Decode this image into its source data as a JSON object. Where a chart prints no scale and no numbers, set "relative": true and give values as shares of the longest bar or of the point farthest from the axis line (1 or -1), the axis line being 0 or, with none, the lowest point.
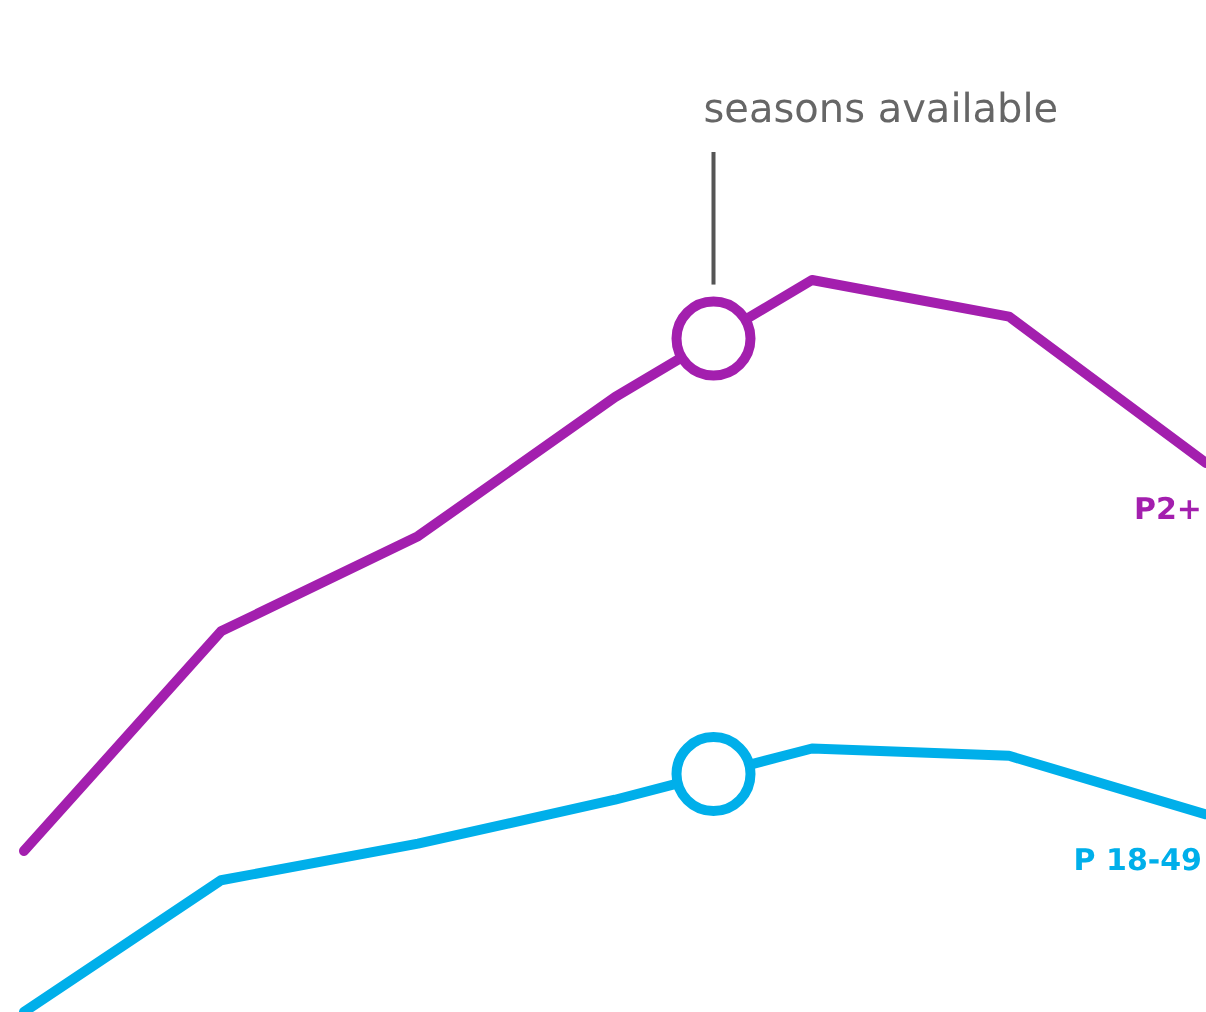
{
  "chart_data": {
    "type": "line",
    "relative": true,
    "marker": "none",
    "categories": [
      null,
      null,
      null,
      null,
      null,
      null,
      null
    ],
    "series": [
      {
        "name": "P2+",
        "color": "#a31fae",
        "values": [
          0.22,
          0.52,
          0.65,
          0.84,
          1,
          0.95,
          0.75
        ]
      },
      {
        "name": "P 18-49",
        "color": "#00afea",
        "values": [
          0,
          0.18,
          0.23,
          0.29,
          0.36,
          0.35,
          0.27
        ]
      }
    ],
    "annotations": [
      "seasons available"
    ]
  }
}
